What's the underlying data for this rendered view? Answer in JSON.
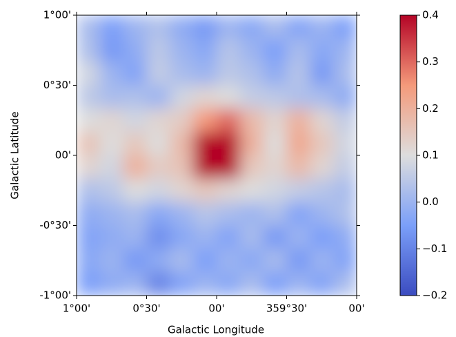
{
  "chart_data": {
    "type": "heatmap",
    "xlabel": "Galactic Longitude",
    "ylabel": "Galactic Latitude",
    "xlim": [
      1,
      -1
    ],
    "ylim": [
      -1,
      1
    ],
    "xticks": [
      {
        "value": 1,
        "label": "1°00'"
      },
      {
        "value": 0.5,
        "label": "0°30'"
      },
      {
        "value": 0,
        "label": "00'"
      },
      {
        "value": -0.5,
        "label": "359°30'"
      },
      {
        "value": -1,
        "label": "00'"
      }
    ],
    "yticks": [
      {
        "value": 1,
        "label": "1°00'"
      },
      {
        "value": 0.5,
        "label": "0°30'"
      },
      {
        "value": 0,
        "label": "00'"
      },
      {
        "value": -0.5,
        "label": "-0°30'"
      },
      {
        "value": -1,
        "label": "-1°00'"
      }
    ],
    "colormap": "coolwarm",
    "clim": [
      -0.2,
      0.4
    ],
    "cticks": [
      {
        "value": -0.2,
        "label": "−0.2"
      },
      {
        "value": -0.1,
        "label": "−0.1"
      },
      {
        "value": 0,
        "label": "0.0"
      },
      0.1,
      0.2,
      0.3,
      0.4
    ],
    "z": [
      [
        0.02,
        -0.05,
        0.0,
        0.03,
        -0.02,
        -0.06,
        0.0,
        -0.03,
        0.02,
        -0.04,
        0.0,
        -0.05
      ],
      [
        0.03,
        -0.06,
        -0.02,
        0.05,
        0.0,
        -0.03,
        0.04,
        0.0,
        -0.05,
        0.02,
        -0.03,
        0.0
      ],
      [
        0.08,
        0.0,
        -0.04,
        0.06,
        0.02,
        0.0,
        0.05,
        0.03,
        -0.02,
        0.04,
        -0.06,
        0.02
      ],
      [
        0.05,
        0.02,
        0.03,
        0.0,
        0.08,
        0.12,
        0.1,
        0.06,
        0.05,
        0.03,
        0.02,
        -0.02
      ],
      [
        0.1,
        0.12,
        0.08,
        0.12,
        0.14,
        0.25,
        0.3,
        0.18,
        0.12,
        0.2,
        0.12,
        0.06
      ],
      [
        0.16,
        0.1,
        0.15,
        0.1,
        0.18,
        0.42,
        0.45,
        0.2,
        0.1,
        0.22,
        0.15,
        0.08
      ],
      [
        0.12,
        0.08,
        0.2,
        0.14,
        0.16,
        0.45,
        0.4,
        0.15,
        0.12,
        0.18,
        0.12,
        0.06
      ],
      [
        0.03,
        0.05,
        0.1,
        0.08,
        0.12,
        0.15,
        0.12,
        0.1,
        0.08,
        0.06,
        0.04,
        0.02
      ],
      [
        -0.02,
        0.0,
        0.02,
        -0.03,
        0.0,
        0.04,
        0.02,
        0.0,
        0.03,
        -0.04,
        0.0,
        0.03
      ],
      [
        -0.04,
        -0.02,
        0.0,
        -0.08,
        -0.03,
        0.0,
        -0.04,
        0.02,
        -0.06,
        0.0,
        -0.05,
        -0.02
      ],
      [
        -0.03,
        0.0,
        -0.06,
        -0.02,
        0.02,
        -0.05,
        0.0,
        -0.03,
        0.02,
        -0.06,
        0.0,
        -0.04
      ],
      [
        -0.05,
        -0.02,
        0.0,
        -0.1,
        -0.04,
        0.0,
        -0.03,
        0.02,
        -0.05,
        0.0,
        -0.04,
        0.02
      ]
    ]
  }
}
